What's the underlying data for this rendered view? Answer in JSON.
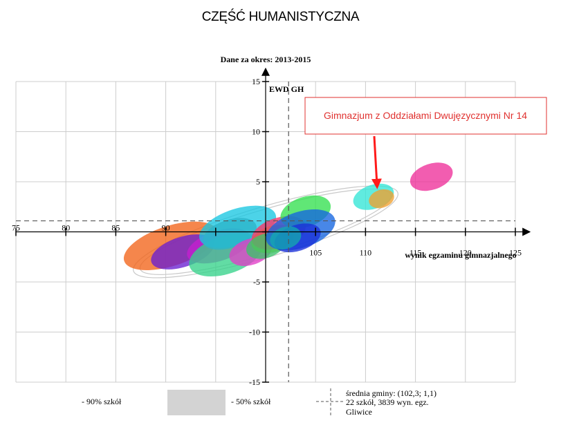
{
  "page": {
    "heading": "CZĘŚĆ HUMANISTYCZNA"
  },
  "chart_data": {
    "type": "scatter",
    "title": "Dane za okres: 2013-2015",
    "xlabel": "wynik egzaminu gimnazjalnego",
    "ylabel": "EWD GH",
    "xlim": [
      75,
      125
    ],
    "ylim": [
      -15,
      15
    ],
    "x_ticks": [
      75,
      80,
      85,
      90,
      95,
      100,
      105,
      110,
      115,
      120,
      125
    ],
    "x_tick_labels": [
      "75",
      "80",
      "85",
      "90",
      "",
      "",
      "105",
      "110",
      "115",
      "120",
      "125"
    ],
    "y_ticks": [
      -15,
      -10,
      -5,
      0,
      5,
      10,
      15
    ],
    "y_tick_labels": [
      "-15",
      "-10",
      "-5",
      "",
      "5",
      "10",
      "15"
    ],
    "grid": true,
    "mean": {
      "x": 102.3,
      "y": 1.1
    },
    "highlighted_label": "Gimnazjum z Oddziałami Dwujęzycznymi Nr 14",
    "highlighted_point": {
      "x": 111.3,
      "y": 3.5
    },
    "confidence_ellipses": [
      {
        "x": 90.5,
        "y": -1.4,
        "rx": 4.9,
        "ry": 2.0,
        "angle": 18,
        "color": "#f26419"
      },
      {
        "x": 91.7,
        "y": -2.0,
        "rx": 3.3,
        "ry": 1.5,
        "angle": 18,
        "color": "#6a1fd1"
      },
      {
        "x": 95.3,
        "y": -1.4,
        "rx": 3.3,
        "ry": 1.5,
        "angle": 18,
        "color": "#c51fcf"
      },
      {
        "x": 96.0,
        "y": -2.3,
        "rx": 3.8,
        "ry": 1.9,
        "angle": 18,
        "color": "#36d28a"
      },
      {
        "x": 97.2,
        "y": 0.5,
        "rx": 4.0,
        "ry": 1.8,
        "angle": 18,
        "color": "#1ac7e2"
      },
      {
        "x": 96.4,
        "y": -0.2,
        "rx": 2.8,
        "ry": 1.4,
        "angle": 18,
        "color": "#2bb5c9"
      },
      {
        "x": 98.5,
        "y": -2.0,
        "rx": 2.2,
        "ry": 1.3,
        "angle": 18,
        "color": "#e23ec8"
      },
      {
        "x": 100.7,
        "y": -0.7,
        "rx": 2.2,
        "ry": 1.3,
        "angle": 18,
        "color": "#7ed321"
      },
      {
        "x": 101.3,
        "y": -0.1,
        "rx": 2.8,
        "ry": 1.5,
        "angle": 18,
        "color": "#ff3366"
      },
      {
        "x": 100.0,
        "y": -1.4,
        "rx": 2.0,
        "ry": 1.2,
        "angle": 18,
        "color": "#3cc36a"
      },
      {
        "x": 104.0,
        "y": 2.0,
        "rx": 2.6,
        "ry": 1.5,
        "angle": 18,
        "color": "#33e04f"
      },
      {
        "x": 103.5,
        "y": 0.2,
        "rx": 3.6,
        "ry": 1.8,
        "angle": 18,
        "color": "#1565e0"
      },
      {
        "x": 103.2,
        "y": -0.6,
        "rx": 2.4,
        "ry": 1.3,
        "angle": 18,
        "color": "#1a2fd8"
      },
      {
        "x": 102.0,
        "y": -0.6,
        "rx": 1.6,
        "ry": 1.1,
        "angle": 18,
        "color": "#13a8b0"
      },
      {
        "x": 110.8,
        "y": 3.5,
        "rx": 2.1,
        "ry": 1.2,
        "angle": 18,
        "color": "#33e6d6"
      },
      {
        "x": 111.6,
        "y": 3.3,
        "rx": 1.3,
        "ry": 0.9,
        "angle": 18,
        "color": "#f0a030"
      },
      {
        "x": 116.6,
        "y": 5.5,
        "rx": 2.2,
        "ry": 1.3,
        "angle": 18,
        "color": "#ee2f9a"
      }
    ],
    "outer_ellipses": [
      {
        "x": 100.0,
        "y": 0.0,
        "rx": 13.8,
        "ry": 2.5,
        "angle": 16.5
      },
      {
        "x": 100.0,
        "y": 0.0,
        "rx": 13.1,
        "ry": 2.2,
        "angle": 16.5
      }
    ],
    "legend": {
      "label_90": "- 90% szkół",
      "label_50": "- 50% szkół",
      "mean_text": "średnia gminy: (102,3; 1,1)",
      "count_text": "22 szkół, 3839 wyn. egz.",
      "place_text": "Gliwice"
    },
    "colors": {
      "grid": "#cccccc",
      "axis": "#000000",
      "dashed": "#555555",
      "label_box_border": "#e0312f",
      "label_text": "#e0312f",
      "arrow": "#ff1a1a",
      "legend_box": "#d3d3d3",
      "outer_ellipse": "#c8c8c8"
    }
  }
}
